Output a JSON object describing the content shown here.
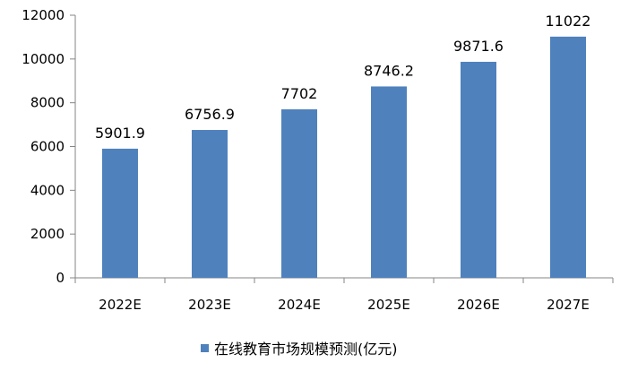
{
  "chart_data": {
    "type": "bar",
    "categories": [
      "2022E",
      "2023E",
      "2024E",
      "2025E",
      "2026E",
      "2027E"
    ],
    "series": [
      {
        "name": "在线教育市场规模预测(亿元)",
        "values": [
          5901.9,
          6756.9,
          7702,
          8746.2,
          9871.6,
          11022
        ],
        "value_labels": [
          "5901.9",
          "6756.9",
          "7702",
          "8746.2",
          "9871.6",
          "11022"
        ]
      }
    ],
    "ylim": [
      0,
      12000
    ],
    "yticks": [
      0,
      2000,
      4000,
      6000,
      8000,
      10000,
      12000
    ],
    "ytick_labels": [
      "0",
      "2000",
      "4000",
      "6000",
      "8000",
      "10000",
      "12000"
    ],
    "grid": false,
    "legend": "bottom-center",
    "colors": {
      "bar": "#4f81bd",
      "axis": "#868686"
    }
  }
}
